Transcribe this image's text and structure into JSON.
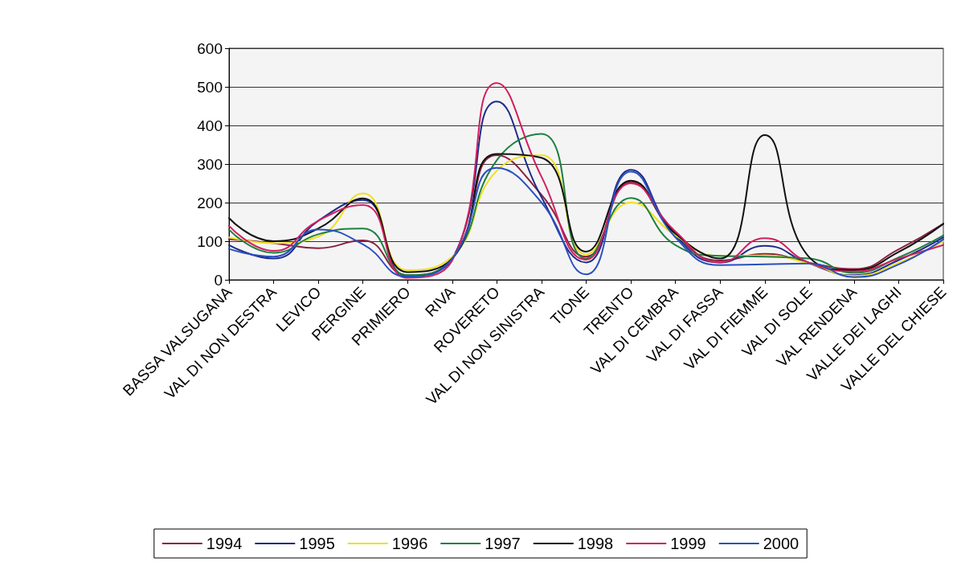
{
  "chart_data": {
    "type": "line",
    "categories": [
      "BASSA VALSUGANA",
      "VAL DI NON DESTRA",
      "LEVICO",
      "PERGINE",
      "PRIMIERO",
      "RIVA",
      "ROVERETO",
      "VAL DI NON SINISTRA",
      "TIONE",
      "TRENTO",
      "VAL DI CEMBRA",
      "VAL DI FASSA",
      "VAL DI FIEMME",
      "VAL DI SOLE",
      "VAL RENDENA",
      "VALLE DEI LAGHI",
      "VALLE DEL CHIESE"
    ],
    "series": [
      {
        "name": "1994",
        "color": "#8b2040",
        "values": [
          105,
          95,
          82,
          102,
          12,
          55,
          323,
          220,
          60,
          253,
          118,
          50,
          67,
          44,
          28,
          79,
          145
        ]
      },
      {
        "name": "1995",
        "color": "#1f2a8a",
        "values": [
          90,
          55,
          153,
          207,
          10,
          55,
          462,
          214,
          45,
          285,
          115,
          45,
          88,
          42,
          12,
          51,
          110
        ]
      },
      {
        "name": "1996",
        "color": "#f0e020",
        "values": [
          110,
          95,
          112,
          224,
          25,
          60,
          283,
          323,
          66,
          200,
          115,
          62,
          63,
          42,
          10,
          44,
          100
        ]
      },
      {
        "name": "1997",
        "color": "#1e8040",
        "values": [
          130,
          70,
          118,
          133,
          12,
          55,
          310,
          378,
          55,
          212,
          90,
          62,
          60,
          55,
          18,
          58,
          115
        ]
      },
      {
        "name": "1998",
        "color": "#111111",
        "values": [
          160,
          100,
          133,
          211,
          20,
          55,
          326,
          316,
          73,
          257,
          120,
          55,
          375,
          58,
          25,
          72,
          145
        ]
      },
      {
        "name": "1999",
        "color": "#d02060",
        "values": [
          140,
          75,
          153,
          194,
          5,
          50,
          510,
          267,
          52,
          250,
          125,
          45,
          108,
          44,
          22,
          55,
          90
        ]
      },
      {
        "name": "2000",
        "color": "#2850c0",
        "values": [
          80,
          60,
          130,
          92,
          8,
          55,
          290,
          200,
          14,
          280,
          110,
          38,
          40,
          42,
          7,
          40,
          105
        ]
      }
    ],
    "ylim": [
      0,
      600
    ],
    "yticks": [
      0,
      100,
      200,
      300,
      400,
      500,
      600
    ],
    "grid": "y",
    "legend": "bottom",
    "marker": "none",
    "line_style": "solid"
  }
}
